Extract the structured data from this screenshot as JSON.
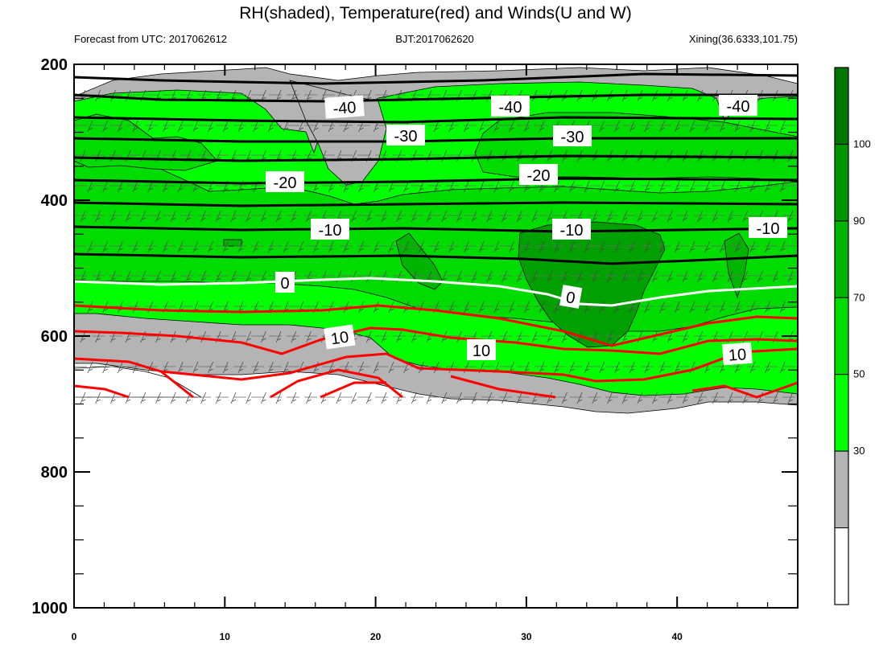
{
  "chart_data": {
    "type": "contour",
    "title": "RH(shaded), Temperature(red) and Winds(U and W)",
    "subtitle_left": "Forecast from UTC: 2017062612",
    "subtitle_center": "BJT:2017062620",
    "subtitle_right": "Xining(36.6333,101.75)",
    "x_range": [
      0,
      48
    ],
    "x_ticks": [
      "0",
      "10",
      "20",
      "30",
      "40"
    ],
    "x_tick_values": [
      0,
      10,
      20,
      30,
      40
    ],
    "y_range": [
      200,
      1000
    ],
    "y_ticks": [
      "200",
      "400",
      "600",
      "800",
      "1000"
    ],
    "y_tick_values": [
      200,
      400,
      600,
      800,
      1000
    ],
    "y_inverted": true,
    "colorbar": {
      "labels": [
        "100",
        "90",
        "70",
        "50",
        "30"
      ],
      "levels": [
        100,
        90,
        70,
        50,
        30
      ],
      "colors": [
        "#ffffff",
        "#b4b4b4",
        "#00ff00",
        "#00dc00",
        "#00b400",
        "#009600",
        "#007800"
      ]
    },
    "temperature_contours": [
      {
        "label": "-40",
        "color": "#000000"
      },
      {
        "label": "-30",
        "color": "#000000"
      },
      {
        "label": "-20",
        "color": "#000000"
      },
      {
        "label": "-10",
        "color": "#000000"
      },
      {
        "label": "0",
        "color": "#ffffff"
      },
      {
        "label": "10",
        "color": "#ff0000"
      }
    ]
  }
}
